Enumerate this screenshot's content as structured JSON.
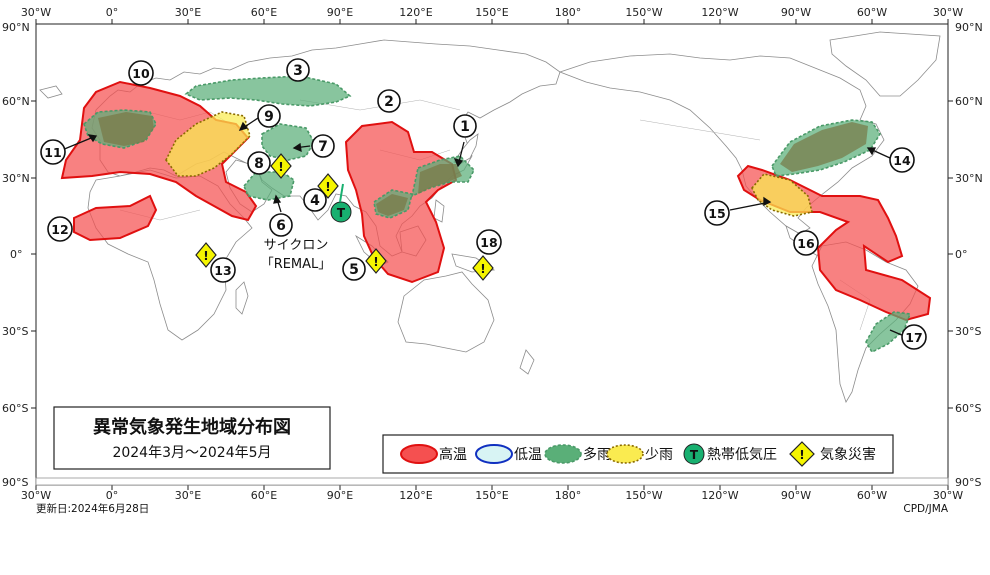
{
  "map": {
    "title": "異常気象発生地域分布図",
    "period": "2024年3月～2024年5月",
    "updated": "更新日:2024年6月28日",
    "credit": "CPD/JMA",
    "lon_labels_top": [
      "30°W",
      "0°",
      "30°E",
      "60°E",
      "90°E",
      "120°E",
      "150°E",
      "180°",
      "150°W",
      "120°W",
      "90°W",
      "60°W",
      "30°W"
    ],
    "lon_labels_bottom": [
      "30°W",
      "0°",
      "30°E",
      "60°E",
      "90°E",
      "120°E",
      "150°E",
      "180°",
      "150°W",
      "120°W",
      "90°W",
      "60°W",
      "30°W"
    ],
    "lat_labels_left": [
      "90°N",
      "60°N",
      "30°N",
      "0°",
      "30°S",
      "60°S",
      "90°S"
    ],
    "lat_labels_right": [
      "90°N",
      "60°N",
      "30°N",
      "0°",
      "30°S",
      "60°S",
      "90°S"
    ],
    "cyclone_note_1": "サイクロン",
    "cyclone_note_2": "「REMAL」",
    "tropical_symbol": "T",
    "disaster_symbol": "!",
    "region_numbers": [
      "1",
      "2",
      "3",
      "4",
      "5",
      "6",
      "7",
      "8",
      "9",
      "10",
      "11",
      "12",
      "13",
      "14",
      "15",
      "16",
      "17",
      "18"
    ],
    "legend": {
      "hot": "高温",
      "cold": "低温",
      "wet": "多雨",
      "dry": "少雨",
      "tropical": "熱帯低気圧",
      "disaster": "気象災害"
    },
    "colors": {
      "hot": "#f55050",
      "cold": "#d8f4f4",
      "wet": "#5aaf78",
      "dry": "#faeb50",
      "tropical": "#18b070",
      "disaster": "#f5f500"
    }
  }
}
